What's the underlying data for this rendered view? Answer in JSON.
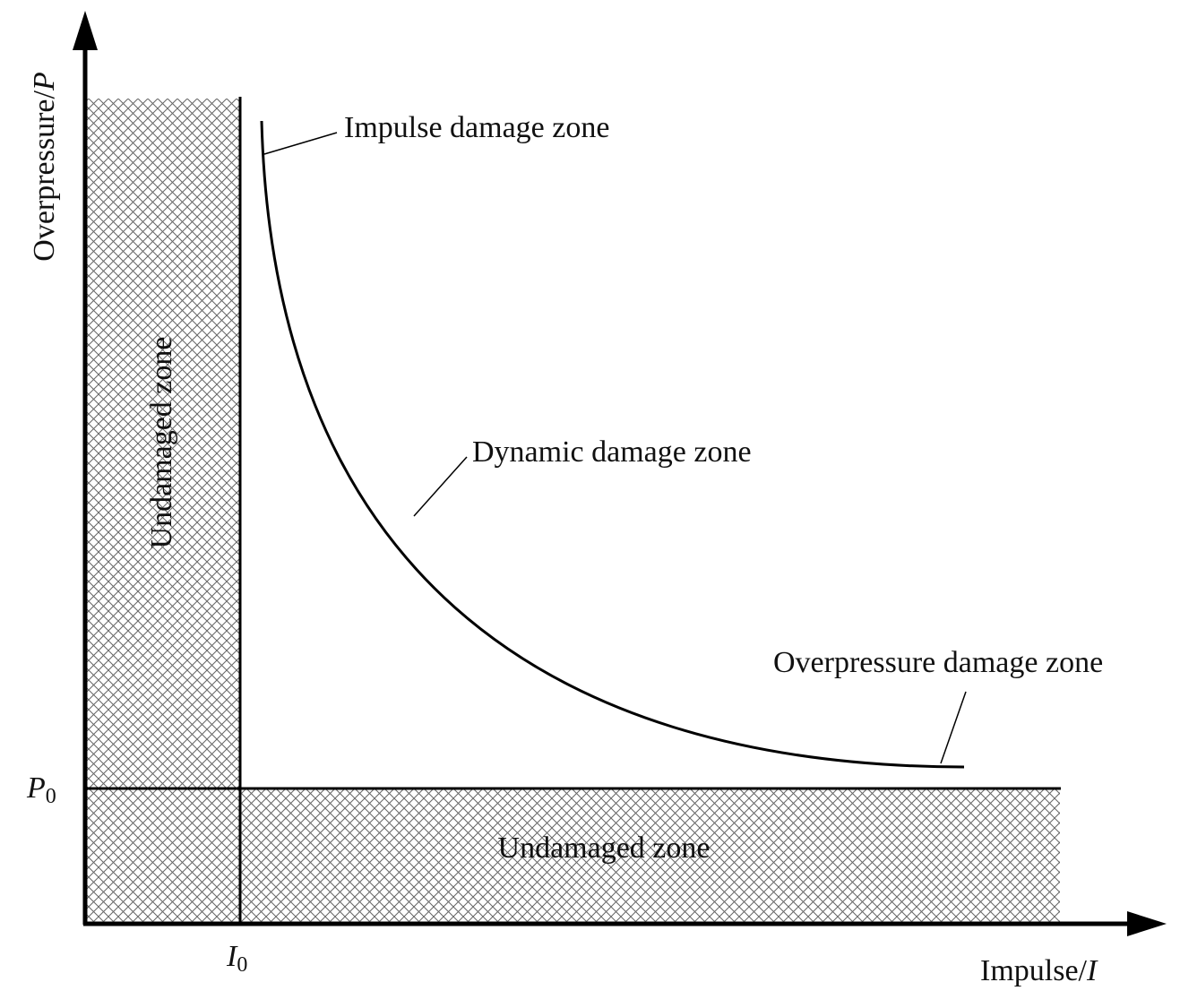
{
  "axes": {
    "y_label": "Overpressure/",
    "y_symbol": "P",
    "x_label": "Impulse/",
    "x_symbol": "I",
    "p0_symbol": "P",
    "p0_subscript": "0",
    "i0_symbol": "I",
    "i0_subscript": "0"
  },
  "zones": {
    "undamaged_vertical": "Undamaged zone",
    "undamaged_horizontal": "Undamaged zone"
  },
  "curve_labels": {
    "impulse": "Impulse damage zone",
    "dynamic": "Dynamic damage zone",
    "overpressure": "Overpressure damage zone"
  },
  "colors": {
    "line": "#000000",
    "hatch": "#555555",
    "background": "#ffffff"
  }
}
